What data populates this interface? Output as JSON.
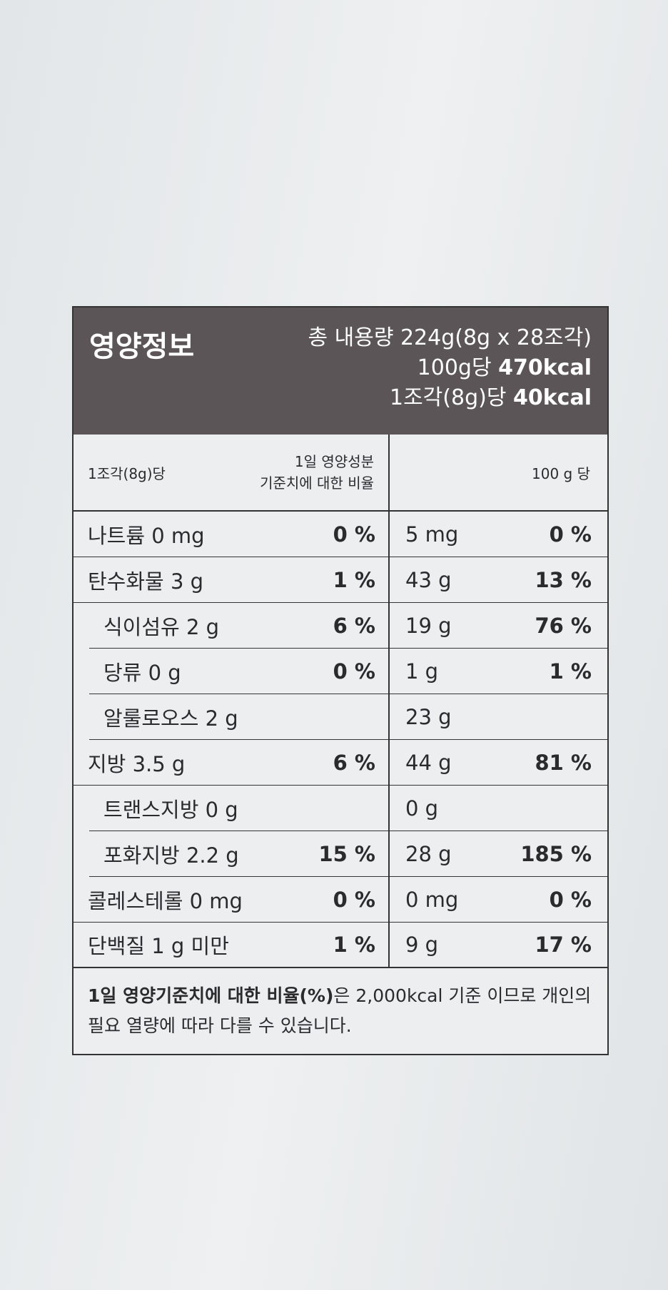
{
  "header": {
    "title": "영양정보",
    "total": "총 내용량 224g(8g x 28조각)",
    "per100g": {
      "label": "100g당",
      "value": "470kcal"
    },
    "perPiece": {
      "label": "1조각(8g)당",
      "value": "40kcal"
    }
  },
  "columns": {
    "left": "1조각(8g)당",
    "dv": [
      "1일 영양성분",
      "기준치에 대한 비율"
    ],
    "right": "100 g 당"
  },
  "rows": [
    {
      "name": "나트륨",
      "amount": "0 mg",
      "dv": "0 %",
      "amount100": "5 mg",
      "dv100": "0 %"
    },
    {
      "name": "탄수화물",
      "amount": "3 g",
      "dv": "1 %",
      "amount100": "43 g",
      "dv100": "13 %"
    },
    {
      "name": "식이섬유",
      "amount": "2 g",
      "dv": "6 %",
      "amount100": "19 g",
      "dv100": "76 %",
      "indent": true
    },
    {
      "name": "당류",
      "amount": "0 g",
      "dv": "0 %",
      "amount100": "1 g",
      "dv100": "1 %",
      "indent": true
    },
    {
      "name": "알룰로오스",
      "amount": "2 g",
      "amount100": "23 g",
      "indent": true
    },
    {
      "name": "지방",
      "amount": "3.5 g",
      "dv": "6 %",
      "amount100": "44 g",
      "dv100": "81 %"
    },
    {
      "name": "트랜스지방",
      "amount": "0 g",
      "amount100": "0 g",
      "indent": true
    },
    {
      "name": "포화지방",
      "amount": "2.2 g",
      "dv": "15 %",
      "amount100": "28 g",
      "dv100": "185 %",
      "indent": true
    },
    {
      "name": "콜레스테롤",
      "amount": "0 mg",
      "dv": "0 %",
      "amount100": "0 mg",
      "dv100": "0 %"
    },
    {
      "name": "단백질",
      "amount": "1 g 미만",
      "dv": "1 %",
      "amount100": "9 g",
      "dv100": "17 %"
    }
  ],
  "footer": {
    "bold": "1일 영양기준치에 대한 비율(%)",
    "text": "은 2,000kcal 기준 이므로 개인의 필요 열량에 따라 다를 수 있습니다."
  }
}
